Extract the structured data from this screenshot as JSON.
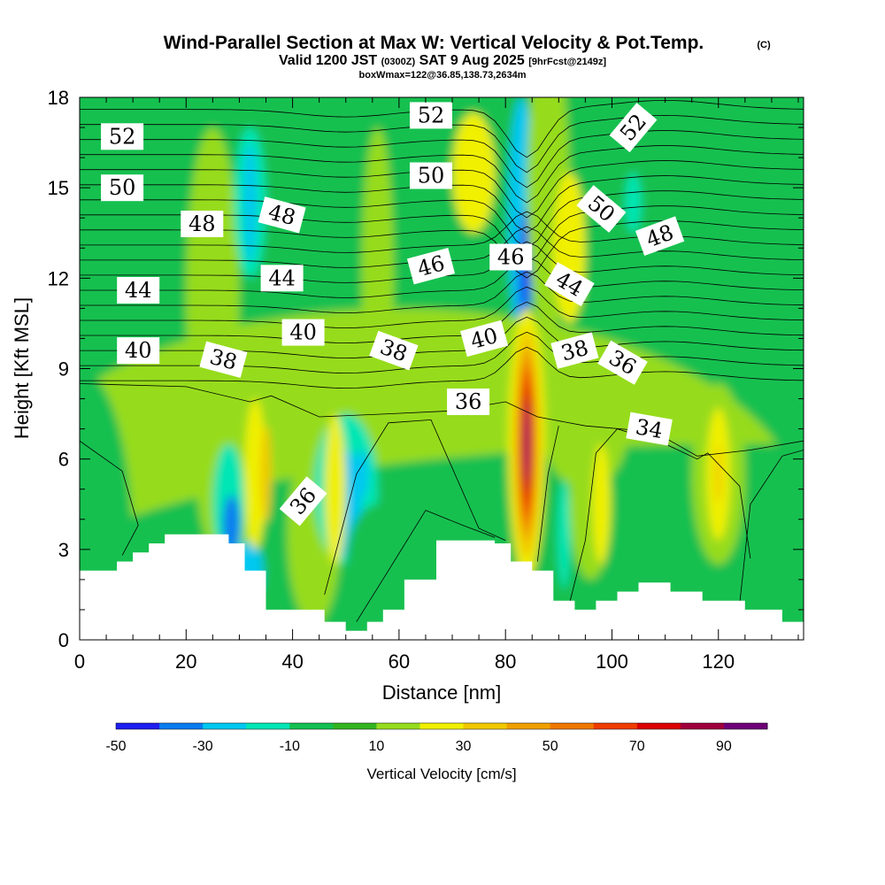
{
  "title": {
    "main": "Wind-Parallel Section at Max W: Vertical Velocity & Pot.Temp.",
    "copyright": "(C)",
    "valid_prefix": "Valid 1200 JST",
    "valid_z": "(0300Z)",
    "valid_date": "SAT 9 Aug 2025",
    "forecast": "[9hrFcst@2149z]",
    "box_info": "boxWmax=122@36.85,138.73,2634m"
  },
  "chart_data": {
    "type": "heatmap",
    "xlabel": "Distance [nm]",
    "ylabel": "Height [Kft MSL]",
    "xlim": [
      0,
      136
    ],
    "ylim": [
      0,
      18
    ],
    "x_ticks": [
      "0",
      "20",
      "40",
      "60",
      "80",
      "100",
      "120"
    ],
    "y_ticks": [
      "0",
      "3",
      "6",
      "9",
      "12",
      "15",
      "18"
    ],
    "colorbar": {
      "label": "Vertical Velocity [cm/s]",
      "tick_labels": [
        "-50",
        "-30",
        "-10",
        "10",
        "30",
        "50",
        "70",
        "90"
      ],
      "colors": [
        "#1e1ef0",
        "#0a7cf0",
        "#00c8f0",
        "#00e6b4",
        "#14c050",
        "#32b41e",
        "#96dc1e",
        "#f0f000",
        "#f0c800",
        "#f0a000",
        "#f07800",
        "#f03c00",
        "#dc0000",
        "#a0003c",
        "#6e0078"
      ]
    },
    "wmax_cms": 122,
    "wmax_location": {
      "lat": 36.85,
      "lon": 138.73,
      "height_m": 2634
    },
    "terrain_kft": [
      {
        "x": 0,
        "h": 2.3
      },
      {
        "x": 7,
        "h": 2.6
      },
      {
        "x": 10,
        "h": 2.9
      },
      {
        "x": 13,
        "h": 3.2
      },
      {
        "x": 16,
        "h": 3.5
      },
      {
        "x": 28,
        "h": 3.2
      },
      {
        "x": 31,
        "h": 2.3
      },
      {
        "x": 35,
        "h": 1.0
      },
      {
        "x": 40,
        "h": 1.0
      },
      {
        "x": 46,
        "h": 0.6
      },
      {
        "x": 50,
        "h": 0.3
      },
      {
        "x": 54,
        "h": 0.6
      },
      {
        "x": 57,
        "h": 1.0
      },
      {
        "x": 61,
        "h": 2.0
      },
      {
        "x": 67,
        "h": 3.3
      },
      {
        "x": 78,
        "h": 3.2
      },
      {
        "x": 81,
        "h": 2.6
      },
      {
        "x": 85,
        "h": 2.3
      },
      {
        "x": 89,
        "h": 1.3
      },
      {
        "x": 93,
        "h": 1.0
      },
      {
        "x": 97,
        "h": 1.3
      },
      {
        "x": 101,
        "h": 1.6
      },
      {
        "x": 105,
        "h": 1.9
      },
      {
        "x": 111,
        "h": 1.6
      },
      {
        "x": 117,
        "h": 1.3
      },
      {
        "x": 125,
        "h": 1.0
      },
      {
        "x": 132,
        "h": 0.6
      },
      {
        "x": 136,
        "h": 0.6
      }
    ],
    "isentrope_labels": [
      {
        "text": "52",
        "x": 8,
        "y": 16.7,
        "angle": 0
      },
      {
        "text": "50",
        "x": 8,
        "y": 15.0,
        "angle": 0
      },
      {
        "text": "48",
        "x": 23,
        "y": 13.8,
        "angle": 0
      },
      {
        "text": "44",
        "x": 11,
        "y": 11.6,
        "angle": 0
      },
      {
        "text": "40",
        "x": 11,
        "y": 9.6,
        "angle": 0
      },
      {
        "text": "48",
        "x": 38,
        "y": 14.1,
        "angle": 15
      },
      {
        "text": "44",
        "x": 38,
        "y": 12.0,
        "angle": 0
      },
      {
        "text": "40",
        "x": 42,
        "y": 10.2,
        "angle": 0
      },
      {
        "text": "38",
        "x": 27,
        "y": 9.3,
        "angle": 15
      },
      {
        "text": "52",
        "x": 66,
        "y": 17.4,
        "angle": 0
      },
      {
        "text": "50",
        "x": 66,
        "y": 15.4,
        "angle": 0
      },
      {
        "text": "46",
        "x": 66,
        "y": 12.4,
        "angle": -15
      },
      {
        "text": "46",
        "x": 81,
        "y": 12.7,
        "angle": 0
      },
      {
        "text": "40",
        "x": 76,
        "y": 10.0,
        "angle": -15
      },
      {
        "text": "38",
        "x": 59,
        "y": 9.6,
        "angle": 20
      },
      {
        "text": "38",
        "x": 93,
        "y": 9.6,
        "angle": -15
      },
      {
        "text": "36",
        "x": 73,
        "y": 7.9,
        "angle": 0
      },
      {
        "text": "44",
        "x": 92,
        "y": 11.8,
        "angle": 30
      },
      {
        "text": "50",
        "x": 98,
        "y": 14.3,
        "angle": 40
      },
      {
        "text": "52",
        "x": 104,
        "y": 17.0,
        "angle": -50
      },
      {
        "text": "48",
        "x": 109,
        "y": 13.4,
        "angle": -20
      },
      {
        "text": "36",
        "x": 102,
        "y": 9.2,
        "angle": 30
      },
      {
        "text": "34",
        "x": 107,
        "y": 7.0,
        "angle": 10
      },
      {
        "text": "36",
        "x": 42,
        "y": 4.6,
        "angle": -50
      }
    ]
  }
}
